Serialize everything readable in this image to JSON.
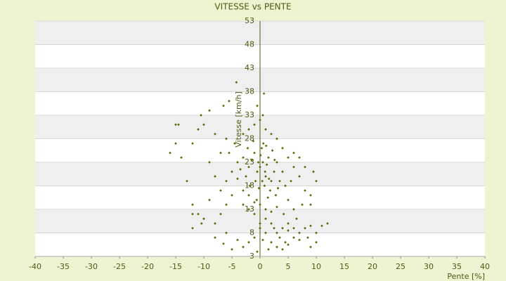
{
  "chart_data": {
    "type": "scatter",
    "title": "VITESSE vs PENTE",
    "xlabel": "Pente [%]",
    "ylabel": "Vitesse [km/h]",
    "color": "#5a6b00",
    "grid": true,
    "xlim": [
      -40,
      40
    ],
    "xticks": [
      -40,
      -35,
      -30,
      -25,
      -20,
      -15,
      -10,
      -5,
      0,
      5,
      10,
      15,
      20,
      25,
      30,
      35,
      40
    ],
    "ylim": [
      3,
      53
    ],
    "yticks": [
      3,
      8,
      13,
      18,
      23,
      28,
      33,
      38,
      43,
      48,
      53
    ],
    "x": [
      0,
      0.5,
      -0.5,
      1,
      1.5,
      -1,
      2,
      -2,
      0.3,
      0.8,
      -0.8,
      1.2,
      2.5,
      3,
      -1.5,
      -2.5,
      0.1,
      1.8,
      -0.2,
      3.5,
      -3,
      2.2,
      0.6,
      -1.2,
      1.4,
      -0.6,
      2.8,
      4,
      -3.5,
      0.9,
      -0.3,
      1.6,
      2.6,
      -1.8,
      3.2,
      0.4,
      -2.2,
      1.1,
      4.5,
      -4,
      5,
      5.5,
      6,
      4.2,
      3,
      2,
      1,
      0,
      -1,
      -2,
      -3,
      -4,
      -5,
      -5.5,
      -6,
      -4.5,
      -3,
      -2,
      -1,
      0,
      1,
      2,
      3,
      4,
      5,
      6,
      7,
      8,
      9,
      7.5,
      6.5,
      5,
      4,
      3,
      2,
      1,
      0,
      -1,
      -2,
      -3,
      -5,
      -6,
      -7,
      -8,
      -9,
      -7,
      -6,
      -8,
      -10,
      -11,
      -12,
      -9,
      -10,
      -12,
      -12,
      -13,
      -14,
      -15,
      -16,
      -15,
      -14.5,
      -10.5,
      -9,
      -6.5,
      -5.5,
      -4.2,
      0.7,
      0.5,
      -0.5,
      1,
      2,
      3,
      4,
      5,
      6,
      7,
      8,
      9,
      10,
      11,
      12,
      10,
      9,
      8.5,
      7,
      6,
      5,
      -1,
      -2,
      -3,
      -4,
      -5,
      -6.5,
      -6,
      -8,
      -10.4,
      -12,
      -11,
      0.5,
      1.5,
      -0.5,
      0,
      2.5,
      3.5,
      4.5,
      9,
      10,
      9.5,
      8,
      7,
      6,
      -7,
      -8
    ],
    "values": [
      22,
      23,
      21,
      20,
      24,
      25,
      19,
      22,
      26,
      18,
      19,
      22.5,
      21,
      23,
      23.5,
      20,
      24.5,
      17,
      17.5,
      19,
      24,
      25.5,
      27,
      27.5,
      15.5,
      15,
      16,
      21,
      21.5,
      21,
      23,
      19.5,
      23.5,
      18,
      17.5,
      19,
      26,
      26.5,
      18,
      19.5,
      15,
      19,
      13,
      12,
      13.5,
      12.5,
      13,
      14,
      14.5,
      16,
      17,
      23,
      21,
      25,
      19,
      27,
      29,
      30,
      31,
      32,
      30,
      29,
      28,
      26,
      24,
      22,
      20,
      17,
      16,
      14,
      11,
      10,
      9,
      8,
      10,
      11,
      10,
      12,
      13,
      14,
      16,
      14,
      17,
      20,
      23,
      25,
      28,
      29,
      31,
      30,
      27,
      15,
      11,
      14,
      12,
      19,
      24,
      27,
      25,
      31,
      31,
      33,
      34,
      35,
      36,
      40,
      37.6,
      33,
      35,
      8,
      6,
      5,
      4.5,
      5.5,
      7,
      8,
      9,
      9.5,
      8,
      9.5,
      10,
      6,
      5,
      7,
      6.5,
      9,
      8.5,
      7,
      6,
      5,
      6.5,
      4.5,
      5.7,
      8,
      7,
      10,
      9,
      12,
      6.5,
      4.5,
      4,
      9,
      9,
      7,
      6,
      14,
      19,
      21,
      22,
      24,
      25,
      12,
      10
    ]
  }
}
